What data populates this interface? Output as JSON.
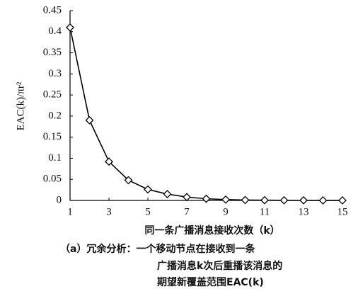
{
  "chart_data": {
    "type": "line",
    "y_label": "EAC(k)/πr²",
    "x_label": "同一条广播消息接收次数（k）",
    "caption": [
      "（a）冗余分析：一个移动节点在接收到一条",
      "广播消息k次后重播该消息的",
      "期望新覆盖范围EAC(k)"
    ],
    "x": [
      1,
      2,
      3,
      4,
      5,
      6,
      7,
      8,
      9,
      10,
      11,
      12,
      13,
      14,
      15
    ],
    "series": [
      {
        "color": "#000000",
        "values": [
          0.41,
          0.19,
          0.092,
          0.048,
          0.026,
          0.015,
          0.008,
          0.004,
          0.002,
          0.001,
          0.0005,
          0.0003,
          0.0002,
          0.0001,
          0.0001
        ]
      }
    ],
    "xlim": [
      1,
      15
    ],
    "xticks": [
      1,
      3,
      5,
      7,
      9,
      11,
      13,
      15
    ],
    "ylim": [
      0,
      0.45
    ],
    "yticks": [
      0,
      0.05,
      0.1,
      0.15,
      0.2,
      0.25,
      0.3,
      0.35,
      0.4,
      0.45
    ],
    "grid": false,
    "marker": "diamond"
  }
}
